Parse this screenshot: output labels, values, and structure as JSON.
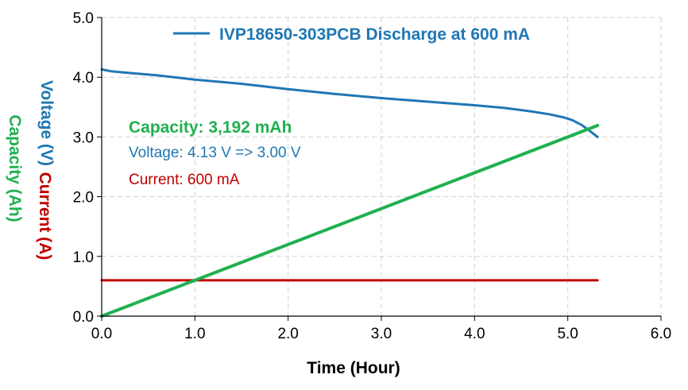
{
  "chart_data": {
    "type": "line",
    "xlabel": "Time (Hour)",
    "ylabels": [
      {
        "text": "Voltage (V)",
        "color": "#1f77b4"
      },
      {
        "text": "Current (A)",
        "color": "#c00000"
      },
      {
        "text": "Capacity (Ah)",
        "color": "#20b050"
      }
    ],
    "xlim": [
      0,
      6
    ],
    "ylim": [
      0,
      5
    ],
    "xticks": [
      "0.0",
      "1.0",
      "2.0",
      "3.0",
      "4.0",
      "5.0",
      "6.0"
    ],
    "yticks": [
      "0.0",
      "1.0",
      "2.0",
      "3.0",
      "4.0",
      "5.0"
    ],
    "grid": true,
    "legend": {
      "position": "top-center",
      "entries": [
        "IVP18650-303PCB Discharge at 600 mA"
      ]
    },
    "annotations": {
      "capacity": "Capacity: 3,192 mAh",
      "voltage": "Voltage: 4.13 V => 3.00 V",
      "current": "Current: 600 mA"
    },
    "series": [
      {
        "name": "IVP18650-303PCB Discharge at 600 mA",
        "key": "voltage",
        "color": "#1f77b4",
        "x": [
          0,
          0.1,
          0.3,
          0.6,
          1.0,
          1.5,
          2.0,
          2.5,
          3.0,
          3.5,
          4.0,
          4.3,
          4.6,
          4.8,
          4.95,
          5.05,
          5.15,
          5.22,
          5.32
        ],
        "y": [
          4.13,
          4.1,
          4.07,
          4.03,
          3.96,
          3.89,
          3.8,
          3.72,
          3.65,
          3.59,
          3.53,
          3.49,
          3.43,
          3.38,
          3.33,
          3.28,
          3.2,
          3.12,
          3.0
        ]
      },
      {
        "key": "current",
        "color": "#c00000",
        "x": [
          0,
          5.32
        ],
        "y": [
          0.6,
          0.6
        ]
      },
      {
        "key": "capacity",
        "color": "#20b050",
        "x": [
          0,
          5.32
        ],
        "y": [
          0,
          3.192
        ]
      }
    ]
  }
}
